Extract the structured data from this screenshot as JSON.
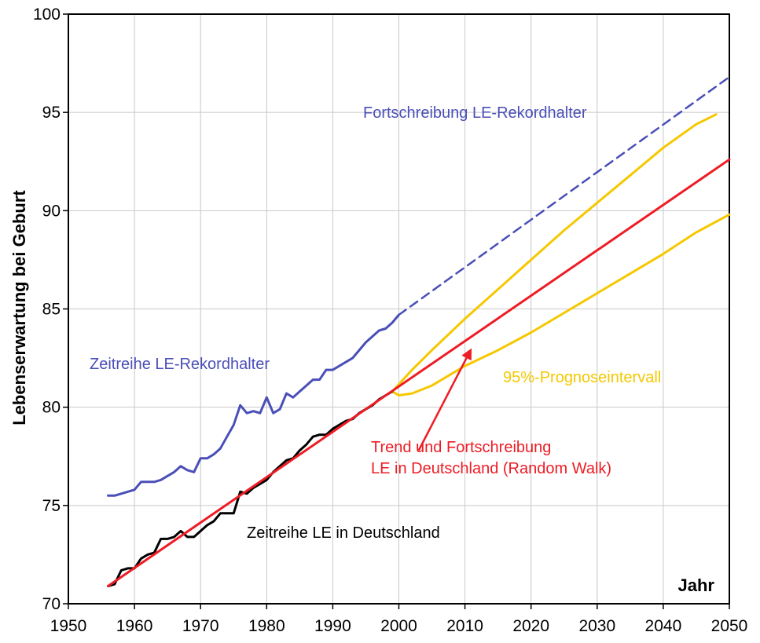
{
  "chart_data": {
    "type": "line",
    "xlabel": "Jahr",
    "ylabel": "Lebenserwartung bei Geburt",
    "xlim": [
      1950,
      2050
    ],
    "ylim": [
      70,
      100
    ],
    "x_ticks": [
      1950,
      1960,
      1970,
      1980,
      1990,
      2000,
      2010,
      2020,
      2030,
      2040,
      2050
    ],
    "y_ticks": [
      70,
      75,
      80,
      85,
      90,
      95,
      100
    ],
    "grid": true,
    "colors": {
      "record": "#4a4fb8",
      "germany": "#000000",
      "trend": "#ee1c24",
      "interval": "#f5c800",
      "grid": "#c8c8c8"
    },
    "series": [
      {
        "key": "record",
        "x": [
          1956,
          1957,
          1958,
          1959,
          1960,
          1961,
          1962,
          1963,
          1964,
          1965,
          1966,
          1967,
          1968,
          1969,
          1970,
          1971,
          1972,
          1973,
          1974,
          1975,
          1976,
          1977,
          1978,
          1979,
          1980,
          1981,
          1982,
          1983,
          1984,
          1985,
          1986,
          1987,
          1988,
          1989,
          1990,
          1991,
          1992,
          1993,
          1994,
          1995,
          1996,
          1997,
          1998,
          1999,
          2000
        ],
        "y": [
          75.5,
          75.5,
          75.6,
          75.7,
          75.8,
          76.2,
          76.2,
          76.2,
          76.3,
          76.5,
          76.7,
          77.0,
          76.8,
          76.7,
          77.4,
          77.4,
          77.6,
          77.9,
          78.5,
          79.1,
          80.1,
          79.7,
          79.8,
          79.7,
          80.5,
          79.7,
          79.9,
          80.7,
          80.5,
          80.8,
          81.1,
          81.4,
          81.4,
          81.9,
          81.9,
          82.1,
          82.3,
          82.5,
          82.9,
          83.3,
          83.6,
          83.9,
          84.0,
          84.3,
          84.7
        ]
      },
      {
        "key": "record_projection",
        "x": [
          2000,
          2050
        ],
        "y": [
          84.7,
          96.8
        ]
      },
      {
        "key": "germany",
        "x": [
          1956,
          1957,
          1958,
          1959,
          1960,
          1961,
          1962,
          1963,
          1964,
          1965,
          1966,
          1967,
          1968,
          1969,
          1970,
          1971,
          1972,
          1973,
          1974,
          1975,
          1976,
          1977,
          1978,
          1979,
          1980,
          1981,
          1982,
          1983,
          1984,
          1985,
          1986,
          1987,
          1988,
          1989,
          1990,
          1991,
          1992,
          1993,
          1994,
          1995,
          1996,
          1997,
          1998,
          1999
        ],
        "y": [
          70.9,
          71.0,
          71.7,
          71.8,
          71.8,
          72.3,
          72.5,
          72.6,
          73.3,
          73.3,
          73.4,
          73.7,
          73.4,
          73.4,
          73.7,
          74.0,
          74.2,
          74.6,
          74.6,
          74.6,
          75.7,
          75.6,
          75.9,
          76.1,
          76.3,
          76.7,
          77.0,
          77.3,
          77.4,
          77.8,
          78.1,
          78.5,
          78.6,
          78.6,
          78.9,
          79.1,
          79.3,
          79.4,
          79.7,
          79.9,
          80.1,
          80.4,
          80.6,
          80.8
        ]
      },
      {
        "key": "trend",
        "x": [
          1956,
          2050
        ],
        "y": [
          70.9,
          92.6
        ]
      },
      {
        "key": "interval_upper",
        "x": [
          1999,
          2002,
          2005,
          2010,
          2015,
          2020,
          2025,
          2030,
          2035,
          2040,
          2045,
          2048
        ],
        "y": [
          80.8,
          81.9,
          82.9,
          84.5,
          86.0,
          87.5,
          89.0,
          90.4,
          91.8,
          93.2,
          94.4,
          94.9
        ]
      },
      {
        "key": "interval_lower",
        "x": [
          1999,
          2000,
          2002,
          2005,
          2010,
          2015,
          2020,
          2025,
          2030,
          2035,
          2040,
          2045,
          2050
        ],
        "y": [
          80.8,
          80.6,
          80.7,
          81.1,
          82.1,
          82.9,
          83.8,
          84.8,
          85.8,
          86.8,
          87.8,
          88.9,
          89.8
        ]
      }
    ],
    "annotations": {
      "record_projection": "Fortschreibung LE-Rekordhalter",
      "record": "Zeitreihe LE-Rekordhalter",
      "interval": "95%-Prognoseintervall",
      "trend_line1": "Trend und Fortschreibung",
      "trend_line2": "LE in Deutschland (Random Walk)",
      "germany": "Zeitreihe LE in Deutschland"
    },
    "arrow": {
      "from": [
        2003,
        77.8
      ],
      "to": [
        2011,
        83.0
      ]
    }
  }
}
